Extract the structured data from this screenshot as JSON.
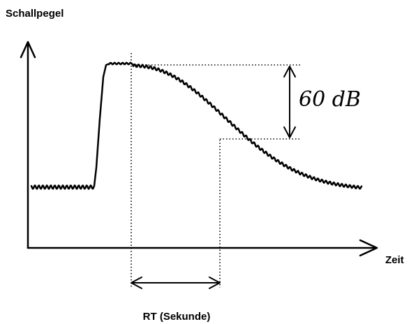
{
  "y_axis_label": "Schallpegel",
  "x_axis_label": "Zeit",
  "level_drop_label": "60 dB",
  "rt_label": "RT (Sekunde)"
}
